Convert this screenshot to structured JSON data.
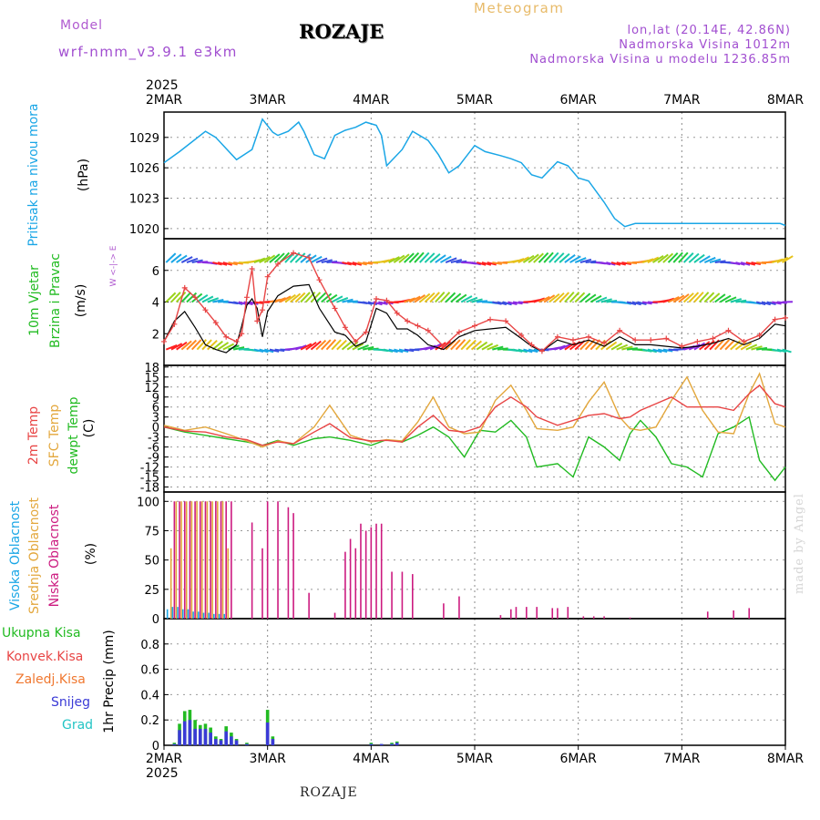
{
  "header": {
    "model_label": "Model",
    "model_name": "wrf-nmm_v3.9.1 e3km",
    "station": "ROZAJE",
    "meteogram_label": "Meteogram",
    "lonlat": "lon,lat (20.14E, 42.86N)",
    "altitude": "Nadmorska Visina 1012m",
    "model_altitude": "Nadmorska Visina u modelu 1236.85m"
  },
  "footer": {
    "station": "ROZAJE",
    "credit": "made by Angel"
  },
  "colors": {
    "pressure": "#1aa6e6",
    "wind_speed": "#e84545",
    "wind_gust": "#000000",
    "temp2m": "#e84545",
    "sfc": "#e3a73c",
    "dewpt": "#22bb22",
    "high_cloud": "#1aa6e6",
    "mid_cloud": "#e3a73c",
    "low_cloud": "#cc1a7f",
    "precip_total": "#22bb22",
    "precip_conv": "#e84545",
    "precip_frz": "#f07830",
    "snow": "#3a3ad6",
    "grad": "#22c4c4",
    "label_purple": "#b05ad0"
  },
  "time_axis": {
    "year": "2025",
    "ticks": [
      "2MAR",
      "3MAR",
      "4MAR",
      "5MAR",
      "6MAR",
      "7MAR",
      "8MAR"
    ]
  },
  "chart_data": [
    {
      "type": "line",
      "id": "pressure",
      "ylabel": [
        "Pritisak na nivou mora",
        "(hPa)"
      ],
      "ylim": [
        1019,
        1031.5
      ],
      "yticks": [
        1020,
        1023,
        1026,
        1029
      ],
      "x": [
        0,
        0.15,
        0.4,
        0.5,
        0.7,
        0.85,
        0.95,
        1.05,
        1.1,
        1.2,
        1.3,
        1.35,
        1.45,
        1.55,
        1.65,
        1.75,
        1.85,
        1.95,
        2.05,
        2.1,
        2.15,
        2.3,
        2.4,
        2.55,
        2.65,
        2.75,
        2.85,
        3.0,
        3.1,
        3.25,
        3.35,
        3.45,
        3.55,
        3.65,
        3.8,
        3.9,
        4.0,
        4.1,
        4.25,
        4.35,
        4.45,
        4.55,
        4.65,
        4.75,
        4.85,
        4.95,
        5.05,
        5.15,
        5.3,
        5.45,
        5.55,
        5.65,
        5.75,
        5.85,
        5.95,
        6.0
      ],
      "values": [
        1026.5,
        1027.6,
        1029.6,
        1029,
        1026.8,
        1027.8,
        1030.8,
        1029.5,
        1029.2,
        1029.6,
        1030.5,
        1029.6,
        1027.3,
        1026.9,
        1029.2,
        1029.7,
        1030,
        1030.5,
        1030.2,
        1029.2,
        1026.2,
        1027.8,
        1029.6,
        1028.7,
        1027.3,
        1025.5,
        1026.2,
        1028.2,
        1027.6,
        1027.2,
        1026.9,
        1026.5,
        1025.3,
        1025,
        1026.6,
        1026.2,
        1025,
        1024.7,
        1022.6,
        1021,
        1020.2,
        1020.5,
        1020.5,
        1020.5,
        1020.5,
        1020.5,
        1020.5,
        1020.5,
        1020.5,
        1020.5,
        1020.5,
        1020.5,
        1020.5,
        1020.5,
        1020.5,
        1020.3
      ]
    },
    {
      "type": "line",
      "id": "wind",
      "ylabel": [
        "10m Vjetar",
        "Brzina i Pravac",
        "(m/s)"
      ],
      "compass": "W <-|-> E",
      "ylim": [
        0,
        8
      ],
      "yticks": [
        2,
        4,
        6
      ],
      "barb_rows": [
        1,
        4,
        6.5
      ],
      "x": [
        0,
        0.1,
        0.2,
        0.3,
        0.4,
        0.5,
        0.6,
        0.7,
        0.75,
        0.8,
        0.85,
        0.9,
        0.95,
        1.0,
        1.1,
        1.25,
        1.4,
        1.5,
        1.65,
        1.75,
        1.85,
        1.95,
        2.05,
        2.15,
        2.25,
        2.35,
        2.45,
        2.55,
        2.7,
        2.85,
        3.0,
        3.15,
        3.3,
        3.45,
        3.55,
        3.65,
        3.8,
        3.95,
        4.1,
        4.25,
        4.4,
        4.55,
        4.7,
        4.85,
        5.0,
        5.15,
        5.3,
        5.45,
        5.6,
        5.75,
        5.9,
        6.0
      ],
      "series": [
        {
          "name": "speed",
          "values": [
            1.5,
            2.6,
            4.9,
            4.3,
            3.5,
            2.7,
            1.8,
            1.5,
            2,
            4.3,
            6.1,
            2.8,
            3.5,
            5.6,
            6.4,
            7.1,
            6.8,
            5.4,
            3.6,
            2.4,
            1.5,
            2.1,
            4.2,
            4.1,
            3.3,
            2.8,
            2.5,
            2.2,
            1.2,
            2.1,
            2.5,
            2.9,
            2.8,
            1.9,
            1.3,
            0.9,
            1.8,
            1.6,
            1.8,
            1.4,
            2.2,
            1.6,
            1.6,
            1.7,
            1.2,
            1.5,
            1.7,
            2.2,
            1.5,
            1.9,
            2.9,
            3.0
          ]
        },
        {
          "name": "gust",
          "values": [
            1.5,
            2.8,
            3.4,
            2.4,
            1.3,
            1,
            0.8,
            1.3,
            2.5,
            3.8,
            4.2,
            3.6,
            1.8,
            3.4,
            4.4,
            5,
            5.1,
            3.6,
            2.1,
            1.9,
            1.2,
            1.5,
            3.6,
            3.3,
            2.3,
            2.3,
            1.9,
            1.3,
            1,
            1.8,
            2.2,
            2.3,
            2.4,
            1.7,
            1.2,
            0.9,
            1.6,
            1.3,
            1.6,
            1.2,
            1.8,
            1.3,
            1.3,
            1.2,
            1.1,
            1.2,
            1.4,
            1.7,
            1.3,
            1.7,
            2.6,
            2.5
          ]
        }
      ]
    },
    {
      "type": "line",
      "id": "temperature",
      "ylabel": [
        "2m Temp",
        "SFC Temp",
        "dewpt Temp",
        "(C)"
      ],
      "ylim": [
        -19.5,
        18.5
      ],
      "yticks": [
        18,
        15,
        12,
        9,
        6,
        3,
        0,
        -3,
        -6,
        -9,
        -12,
        -15,
        -18
      ],
      "ytick_labels": [
        "18",
        "15",
        "12",
        "9",
        "6",
        "3",
        "0",
        "-3",
        "-6",
        "-9",
        "-12",
        "-15",
        "-18"
      ],
      "x": [
        0,
        0.2,
        0.4,
        0.6,
        0.8,
        0.95,
        1.1,
        1.25,
        1.45,
        1.6,
        1.8,
        2.0,
        2.15,
        2.3,
        2.45,
        2.6,
        2.75,
        2.9,
        3.05,
        3.2,
        3.35,
        3.5,
        3.6,
        3.8,
        3.95,
        4.1,
        4.25,
        4.4,
        4.5,
        4.6,
        4.75,
        4.9,
        5.05,
        5.2,
        5.35,
        5.5,
        5.65,
        5.75,
        5.9,
        6.0
      ],
      "series": [
        {
          "name": "2m",
          "values": [
            0,
            -1.2,
            -1.5,
            -3,
            -3.8,
            -5.5,
            -4.5,
            -5,
            -1.5,
            1,
            -3.2,
            -4.2,
            -4,
            -4.5,
            0,
            3.5,
            -1,
            -1.5,
            0,
            6,
            9,
            6,
            3,
            0.5,
            2,
            3.5,
            4,
            2.5,
            3,
            5,
            7,
            9,
            6,
            6,
            6,
            5,
            10,
            12.5,
            7,
            6
          ]
        },
        {
          "name": "sfc",
          "values": [
            0.5,
            -1,
            0,
            -2,
            -4.2,
            -6,
            -4.2,
            -5,
            0,
            6.5,
            -2.5,
            -4.5,
            -3.8,
            -4.2,
            1.5,
            9,
            0,
            -2,
            -1.5,
            8,
            12.5,
            5,
            -0.5,
            -1,
            0,
            7.5,
            13.5,
            3,
            -0.5,
            -1,
            0,
            8,
            15,
            5,
            -1.5,
            -2,
            10,
            16,
            1,
            0
          ]
        },
        {
          "name": "dewpt",
          "values": [
            0,
            -1.5,
            -2.5,
            -3.5,
            -4.5,
            -5.5,
            -4,
            -5.5,
            -3.5,
            -3,
            -4,
            -5.5,
            -3.8,
            -4.5,
            -2.5,
            0,
            -3,
            -9,
            -1,
            -1.5,
            2,
            -3,
            -12,
            -11,
            -15,
            -3,
            -6,
            -10,
            -2,
            2,
            -3,
            -11,
            -12,
            -15,
            -2,
            0,
            3,
            -10,
            -16,
            -12
          ]
        }
      ]
    },
    {
      "type": "bar",
      "id": "cloud",
      "ylabel": [
        "Visoka Oblacnost",
        "Srednja Oblacnost",
        "Niska Oblacnost",
        "(%)"
      ],
      "ylim": [
        0,
        108
      ],
      "yticks": [
        0,
        25,
        50,
        75,
        100
      ],
      "series": [
        {
          "name": "high",
          "x": [
            0.05,
            0.1,
            0.15,
            0.2,
            0.25,
            0.3,
            0.35,
            0.4,
            0.45,
            0.5,
            0.55,
            0.6
          ],
          "values": [
            8,
            10,
            10,
            8,
            8,
            6,
            6,
            5,
            5,
            4,
            4,
            4
          ]
        },
        {
          "name": "mid",
          "x": [
            0.05,
            0.1,
            0.15,
            0.2,
            0.25,
            0.3,
            0.35,
            0.4,
            0.45,
            0.5,
            0.55,
            0.6
          ],
          "values": [
            60,
            100,
            100,
            100,
            100,
            100,
            100,
            100,
            100,
            100,
            100,
            60
          ]
        },
        {
          "name": "low",
          "x": [
            0.1,
            0.15,
            0.2,
            0.25,
            0.3,
            0.35,
            0.4,
            0.45,
            0.5,
            0.55,
            0.6,
            0.65,
            0.85,
            0.95,
            1.0,
            1.1,
            1.2,
            1.25,
            1.4,
            1.65,
            1.75,
            1.8,
            1.85,
            1.9,
            1.95,
            2.0,
            2.05,
            2.1,
            2.2,
            2.3,
            2.4,
            2.7,
            2.85,
            3.25,
            3.35,
            3.4,
            3.5,
            3.6,
            3.75,
            3.8,
            3.9,
            4.05,
            4.15,
            4.25,
            4.5,
            5.25,
            5.5,
            5.65
          ],
          "values": [
            100,
            100,
            100,
            100,
            100,
            100,
            100,
            100,
            100,
            100,
            100,
            100,
            82,
            60,
            100,
            100,
            95,
            90,
            22,
            5,
            57,
            68,
            60,
            81,
            75,
            78,
            81,
            81,
            40,
            40,
            38,
            13,
            19,
            3,
            8,
            10,
            10,
            10,
            9,
            9,
            10,
            2,
            2,
            2,
            1,
            6,
            7,
            9
          ]
        }
      ]
    },
    {
      "type": "bar",
      "id": "precip",
      "ylabel": [
        "Ukupna Kisa",
        "Konvek.Kisa",
        "Zaledj.Kisa",
        "Snijeg",
        "Grad",
        "1hr Precip (mm)"
      ],
      "ylim": [
        0,
        1.0
      ],
      "yticks": [
        0,
        0.2,
        0.4,
        0.6,
        0.8
      ],
      "ytick_labels": [
        "0",
        "0.2",
        "0.4",
        "0.6",
        "0.8"
      ],
      "series": [
        {
          "name": "total",
          "x": [
            0.1,
            0.15,
            0.2,
            0.25,
            0.3,
            0.35,
            0.4,
            0.45,
            0.5,
            0.55,
            0.6,
            0.65,
            0.7,
            0.8,
            1.0,
            1.05,
            2.0,
            2.1,
            2.2,
            2.25
          ],
          "values": [
            0.02,
            0.17,
            0.27,
            0.28,
            0.2,
            0.16,
            0.17,
            0.14,
            0.07,
            0.05,
            0.15,
            0.1,
            0.05,
            0.02,
            0.28,
            0.07,
            0.02,
            0.01,
            0.02,
            0.03
          ]
        },
        {
          "name": "snow",
          "x": [
            0.1,
            0.15,
            0.2,
            0.25,
            0.3,
            0.35,
            0.4,
            0.45,
            0.5,
            0.55,
            0.6,
            0.65,
            0.7,
            0.8,
            1.0,
            1.05,
            2.0,
            2.1,
            2.2,
            2.25
          ],
          "values": [
            0.01,
            0.12,
            0.19,
            0.2,
            0.13,
            0.13,
            0.13,
            0.1,
            0.05,
            0.04,
            0.11,
            0.07,
            0.04,
            0.01,
            0.18,
            0.05,
            0.01,
            0.01,
            0.01,
            0.02
          ]
        }
      ]
    }
  ]
}
